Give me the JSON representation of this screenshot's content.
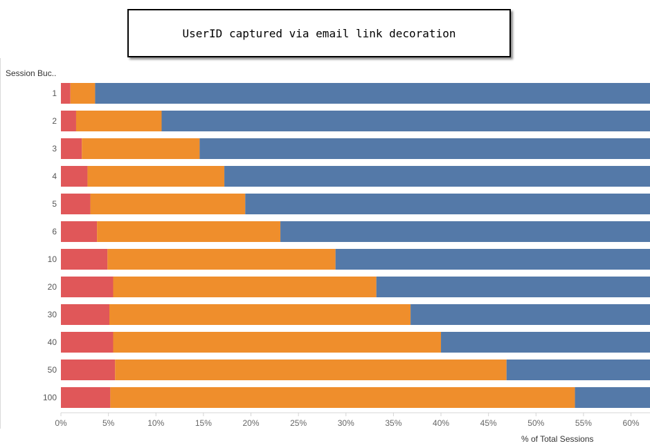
{
  "title": "UserID captured via email link decoration",
  "chart_data": {
    "type": "bar",
    "orientation": "horizontal",
    "stacked": true,
    "y_header": "Session Buc..",
    "xlabel": "% of Total Sessions",
    "xlim": [
      0,
      62
    ],
    "xticks": [
      "0%",
      "5%",
      "10%",
      "15%",
      "20%",
      "25%",
      "30%",
      "35%",
      "40%",
      "45%",
      "50%",
      "55%",
      "60%"
    ],
    "xtick_values": [
      0,
      5,
      10,
      15,
      20,
      25,
      30,
      35,
      40,
      45,
      50,
      55,
      60
    ],
    "categories": [
      "1",
      "2",
      "3",
      "4",
      "5",
      "6",
      "10",
      "20",
      "30",
      "40",
      "50",
      "100"
    ],
    "series": [
      {
        "color": "#e05759",
        "values": [
          1.0,
          1.6,
          2.2,
          2.8,
          3.1,
          3.8,
          4.9,
          5.5,
          5.1,
          5.5,
          5.7,
          5.2
        ]
      },
      {
        "color": "#ef8e2c",
        "values": [
          2.6,
          9.0,
          12.4,
          14.4,
          16.3,
          19.3,
          24.0,
          27.7,
          31.7,
          34.5,
          41.2,
          48.9
        ]
      },
      {
        "color": "#5479a8",
        "values": [
          58.4,
          51.4,
          47.4,
          44.8,
          42.6,
          38.9,
          33.1,
          28.8,
          25.2,
          22.0,
          15.1,
          7.9
        ]
      }
    ],
    "grid": false,
    "legend": "none"
  }
}
